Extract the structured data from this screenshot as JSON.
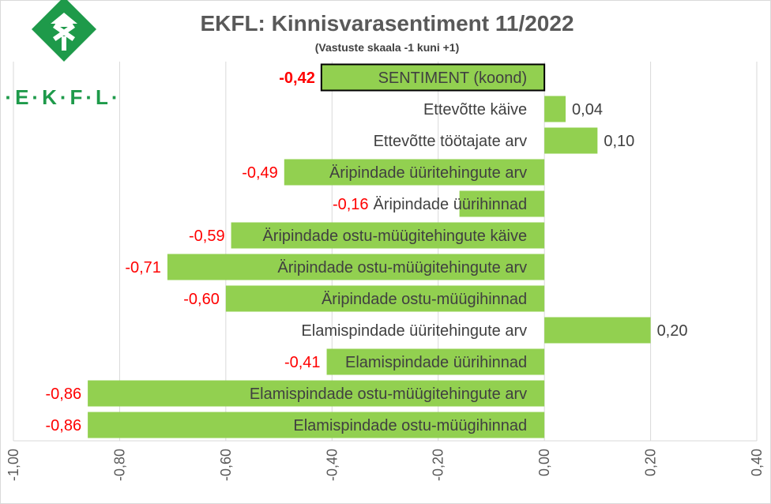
{
  "header": {
    "title": "EKFL: Kinnisvarasentiment 11/2022",
    "subtitle": "(Vastuste skaala -1 kuni +1)"
  },
  "logo": {
    "text": "·E·K·F·L·",
    "color": "#1e9a4a"
  },
  "chart_data": {
    "type": "bar",
    "orientation": "horizontal",
    "title": "EKFL: Kinnisvarasentiment 11/2022",
    "subtitle": "(Vastuste skaala -1 kuni +1)",
    "categories": [
      "SENTIMENT (koond)",
      "Ettevõtte käive",
      "Ettevõtte töötajate arv",
      "Äripindade üüritehingute arv",
      "Äripindade üürihinnad",
      "Äripindade ostu-müügitehingute käive",
      "Äripindade ostu-müügitehingute arv",
      "Äripindade ostu-müügihinnad",
      "Elamispindade üüritehingute arv",
      "Elamispindade üürihinnad",
      "Elamispindade ostu-müügitehingute arv",
      "Elamispindade ostu-müügihinnad"
    ],
    "values": [
      -0.42,
      0.04,
      0.1,
      -0.49,
      -0.16,
      -0.59,
      -0.71,
      -0.6,
      0.2,
      -0.41,
      -0.86,
      -0.86
    ],
    "value_labels": [
      "-0,42",
      "0,04",
      "0,10",
      "-0,49",
      "-0,16",
      "-0,59",
      "-0,71",
      "-0,60",
      "0,20",
      "-0,41",
      "-0,86",
      "-0,86"
    ],
    "xlim": [
      -1.0,
      0.4
    ],
    "xticks": [
      -1.0,
      -0.8,
      -0.6,
      -0.4,
      -0.2,
      0.0,
      0.2,
      0.4
    ],
    "xtick_labels": [
      "-1,00",
      "-0,80",
      "-0,60",
      "-0,40",
      "-0,20",
      "0,00",
      "0,20",
      "0,40"
    ],
    "grid": true,
    "legend": "none",
    "colors": {
      "bar": "#92d050",
      "negative_label": "#ff0000",
      "positive_label": "#404040",
      "grid": "#d9d9d9",
      "highlight_border": "#000000"
    }
  }
}
